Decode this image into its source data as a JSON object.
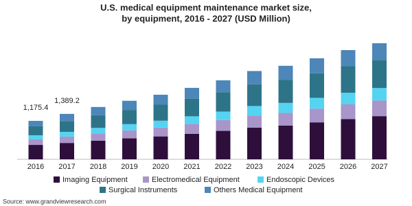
{
  "chart_data": {
    "type": "stacked-bar",
    "title": "U.S. medical equipment maintenance market size,",
    "subtitle": "by equipment, 2016 - 2027 (USD Million)",
    "categories": [
      "2016",
      "2017",
      "2018",
      "2019",
      "2020",
      "2021",
      "2022",
      "2023",
      "2024",
      "2025",
      "2026",
      "2027"
    ],
    "series": [
      {
        "name": "Imaging Equipment",
        "color": "#2e0f3c",
        "values": [
          440,
          500,
          570,
          640,
          700,
          780,
          870,
          970,
          1030,
          1130,
          1230,
          1320
        ]
      },
      {
        "name": "Electromedical Equipment",
        "color": "#a895c9",
        "values": [
          170,
          195,
          220,
          245,
          270,
          300,
          330,
          370,
          390,
          420,
          450,
          480
        ]
      },
      {
        "name": "Endoscopic Devices",
        "color": "#55d4f2",
        "values": [
          125,
          145,
          170,
          190,
          210,
          235,
          260,
          290,
          305,
          330,
          355,
          380
        ]
      },
      {
        "name": "Surgical Instruments",
        "color": "#2e7489",
        "values": [
          275,
          330,
          390,
          435,
          490,
          540,
          590,
          665,
          700,
          750,
          810,
          860
        ]
      },
      {
        "name": "Others Medical Equipment",
        "color": "#4d86b8",
        "values": [
          165.4,
          219.2,
          250,
          280,
          305,
          330,
          365,
          405,
          435,
          460,
          495,
          510
        ]
      }
    ],
    "annotations": [
      {
        "category": "2016",
        "value": 1175.4,
        "label": "1,175.4"
      },
      {
        "category": "2017",
        "value": 1389.2,
        "label": "1,389.2"
      }
    ],
    "source": "Source: www.grandviewresearch.com"
  }
}
